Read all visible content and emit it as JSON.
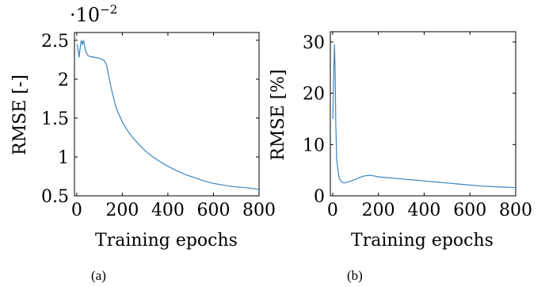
{
  "chart_data": [
    {
      "type": "line",
      "panel_label": "(a)",
      "xlabel": "Training epochs",
      "ylabel": "RMSE [-]",
      "scale_note_base": "·10",
      "scale_note_exp": "−2",
      "xlim": [
        -10,
        800
      ],
      "ylim": [
        0.5,
        2.6
      ],
      "xticks": [
        0,
        200,
        400,
        600,
        800
      ],
      "xtick_labels": [
        "0",
        "200",
        "400",
        "600",
        "800"
      ],
      "yticks": [
        0.5,
        1,
        1.5,
        2,
        2.5
      ],
      "ytick_labels": [
        "0.5",
        "1",
        "1.5",
        "2",
        "2.5"
      ],
      "grid": false,
      "line_color": "#3a85c0",
      "series": [
        {
          "x": [
            1,
            5,
            10,
            15,
            20,
            25,
            30,
            35,
            40,
            50,
            60,
            80,
            100,
            120,
            130,
            140,
            150,
            160,
            170,
            180,
            200,
            220,
            240,
            260,
            280,
            300,
            330,
            360,
            400,
            440,
            480,
            520,
            560,
            600,
            640,
            680,
            720,
            760,
            800
          ],
          "y": [
            2.45,
            2.4,
            2.28,
            2.4,
            2.5,
            2.45,
            2.5,
            2.42,
            2.35,
            2.3,
            2.29,
            2.28,
            2.27,
            2.24,
            2.19,
            2.05,
            1.9,
            1.78,
            1.66,
            1.58,
            1.45,
            1.35,
            1.27,
            1.2,
            1.14,
            1.08,
            1.01,
            0.95,
            0.88,
            0.82,
            0.77,
            0.73,
            0.69,
            0.66,
            0.64,
            0.62,
            0.61,
            0.6,
            0.58
          ]
        }
      ]
    },
    {
      "type": "line",
      "panel_label": "(b)",
      "xlabel": "Training epochs",
      "ylabel": "RMSE [%]",
      "xlim": [
        -10,
        800
      ],
      "ylim": [
        0,
        32
      ],
      "xticks": [
        0,
        200,
        400,
        600,
        800
      ],
      "xtick_labels": [
        "0",
        "200",
        "400",
        "600",
        "800"
      ],
      "yticks": [
        0,
        10,
        20,
        30
      ],
      "ytick_labels": [
        "0",
        "10",
        "20",
        "30"
      ],
      "grid": false,
      "line_color": "#3a85c0",
      "series": [
        {
          "x": [
            1,
            4,
            8,
            11,
            14,
            18,
            22,
            26,
            30,
            40,
            50,
            60,
            80,
            100,
            120,
            140,
            160,
            180,
            200,
            250,
            300,
            350,
            400,
            450,
            500,
            550,
            600,
            650,
            700,
            750,
            800
          ],
          "y": [
            15,
            22,
            29.5,
            24,
            14,
            7,
            5.5,
            4.2,
            3.3,
            2.7,
            2.5,
            2.6,
            2.9,
            3.2,
            3.6,
            3.9,
            4.0,
            3.9,
            3.7,
            3.5,
            3.3,
            3.1,
            2.9,
            2.7,
            2.5,
            2.3,
            2.1,
            1.9,
            1.8,
            1.7,
            1.6
          ]
        }
      ]
    }
  ]
}
